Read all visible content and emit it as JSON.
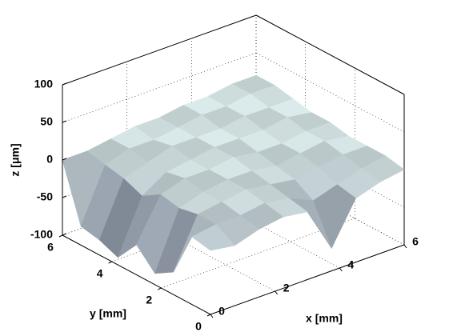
{
  "chart_data": {
    "type": "surface",
    "x_label": "x [mm]",
    "y_label": "y [mm]",
    "z_label": "z [μm]",
    "x": [
      0,
      0.75,
      1.5,
      2.25,
      3,
      3.75,
      4.5,
      5.25,
      6
    ],
    "y": [
      0,
      0.75,
      1.5,
      2.25,
      3,
      3.75,
      4.5,
      5.25,
      6
    ],
    "z": [
      [
        -15,
        -20,
        -10,
        -5,
        -10,
        -70,
        -15,
        -5,
        0
      ],
      [
        -10,
        -5,
        -5,
        0,
        -5,
        -20,
        -10,
        0,
        5
      ],
      [
        -70,
        -5,
        0,
        5,
        0,
        -5,
        0,
        5,
        5
      ],
      [
        -85,
        -10,
        0,
        5,
        5,
        0,
        5,
        10,
        5
      ],
      [
        -60,
        -5,
        5,
        5,
        10,
        5,
        5,
        10,
        10
      ],
      [
        -90,
        -20,
        0,
        5,
        10,
        10,
        10,
        15,
        10
      ],
      [
        -80,
        -10,
        0,
        10,
        10,
        10,
        15,
        15,
        15
      ],
      [
        -75,
        -5,
        5,
        5,
        10,
        15,
        15,
        20,
        20
      ],
      [
        0,
        0,
        5,
        10,
        10,
        15,
        15,
        20,
        20
      ]
    ],
    "xlim": [
      0,
      6
    ],
    "xticks": [
      0,
      2,
      4,
      6
    ],
    "ylim": [
      0,
      6
    ],
    "yticks": [
      0,
      2,
      4,
      6
    ],
    "zlim": [
      -100,
      100
    ],
    "zticks": [
      -100,
      -50,
      0,
      50,
      100
    ],
    "grid": true,
    "colors": [
      "#555a75",
      "#dbeaea"
    ]
  }
}
